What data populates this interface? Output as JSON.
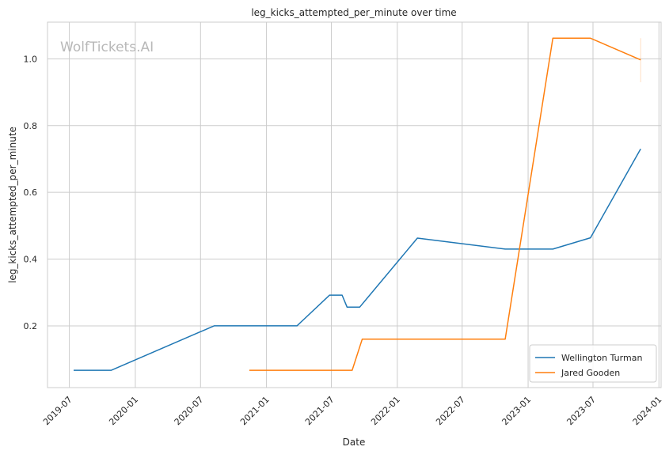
{
  "chart_data": {
    "type": "line",
    "title": "leg_kicks_attempted_per_minute over time",
    "xlabel": "Date",
    "ylabel": "leg_kicks_attempted_per_minute",
    "watermark": "WolfTickets.AI",
    "xlim": [
      "2019-05-01",
      "2024-01-07"
    ],
    "ylim": [
      0.015,
      1.11
    ],
    "x_ticks": [
      "2019-07",
      "2020-01",
      "2020-07",
      "2021-01",
      "2021-07",
      "2022-01",
      "2022-07",
      "2023-01",
      "2023-07",
      "2024-01"
    ],
    "y_ticks": [
      "0.2",
      "0.4",
      "0.6",
      "0.8",
      "1.0"
    ],
    "grid": true,
    "legend_position": "lower-right",
    "series": [
      {
        "name": "Wellington Turman",
        "color": "#1f77b4",
        "x": [
          "2019-07-13",
          "2019-10-26",
          "2020-08-08",
          "2021-03-27",
          "2021-06-26",
          "2021-07-31",
          "2021-08-14",
          "2021-09-18",
          "2022-02-26",
          "2022-10-29",
          "2023-03-11",
          "2023-06-24",
          "2023-11-11"
        ],
        "y": [
          0.067,
          0.067,
          0.2,
          0.2,
          0.292,
          0.292,
          0.256,
          0.256,
          0.463,
          0.43,
          0.43,
          0.464,
          0.73
        ]
      },
      {
        "name": "Jared Gooden",
        "color": "#ff7f0e",
        "x": [
          "2020-11-14",
          "2021-08-28",
          "2021-09-25",
          "2022-10-29",
          "2023-03-11",
          "2023-06-24",
          "2023-11-11"
        ],
        "y": [
          0.067,
          0.067,
          0.16,
          0.16,
          1.062,
          1.062,
          0.997
        ]
      }
    ],
    "error_bar": {
      "series": "Jared Gooden",
      "x": "2023-11-11",
      "y_low": 0.93,
      "y_high": 1.062
    }
  }
}
